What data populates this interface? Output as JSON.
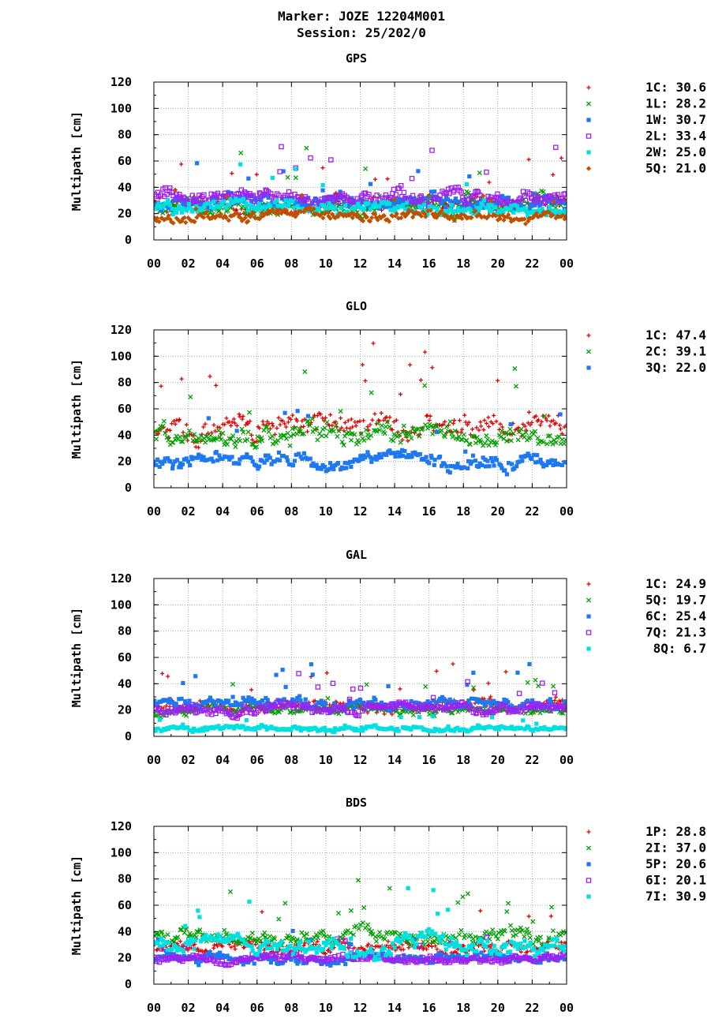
{
  "header": {
    "title_line1": "Marker: JOZE 12204M001",
    "title_line2": "Session: 25/202/0"
  },
  "colors": {
    "red": "#e00000",
    "green": "#00a000",
    "blue": "#1e78f0",
    "purple": "#a020f0",
    "cyan": "#00e0e0",
    "brown": "#c05000"
  },
  "chart_data": [
    {
      "type": "scatter",
      "title": "GPS",
      "ylabel": "Multipath [cm]",
      "ylim": [
        0,
        120
      ],
      "yticks": [
        "0",
        "20",
        "40",
        "60",
        "80",
        "100",
        "120"
      ],
      "xlim": [
        0,
        24
      ],
      "xticks": [
        "00",
        "02",
        "04",
        "06",
        "08",
        "10",
        "12",
        "14",
        "16",
        "18",
        "20",
        "22",
        "00"
      ],
      "grid": true,
      "legend_position": "right",
      "series": [
        {
          "name": "1C",
          "value": "30.6",
          "color": "#e00000",
          "marker": "plus",
          "base": 28,
          "spread": 6
        },
        {
          "name": "1L",
          "value": "28.2",
          "color": "#00a000",
          "marker": "cross",
          "base": 26,
          "spread": 7
        },
        {
          "name": "1W",
          "value": "30.7",
          "color": "#1e78f0",
          "marker": "square",
          "base": 29,
          "spread": 6
        },
        {
          "name": "2L",
          "value": "33.4",
          "color": "#a020f0",
          "marker": "osquare",
          "base": 33,
          "spread": 6
        },
        {
          "name": "2W",
          "value": "25.0",
          "color": "#00e0e0",
          "marker": "square",
          "base": 24,
          "spread": 5
        },
        {
          "name": "5Q",
          "value": "21.0",
          "color": "#c05000",
          "marker": "diamond",
          "base": 18,
          "spread": 4
        }
      ]
    },
    {
      "type": "scatter",
      "title": "GLO",
      "ylabel": "Multipath [cm]",
      "ylim": [
        0,
        120
      ],
      "yticks": [
        "0",
        "20",
        "40",
        "60",
        "80",
        "100",
        "120"
      ],
      "xlim": [
        0,
        24
      ],
      "xticks": [
        "00",
        "02",
        "04",
        "06",
        "08",
        "10",
        "12",
        "14",
        "16",
        "18",
        "20",
        "22",
        "00"
      ],
      "grid": true,
      "legend_position": "right",
      "series": [
        {
          "name": "1C",
          "value": "47.4",
          "color": "#e00000",
          "marker": "plus",
          "base": 46,
          "spread": 10
        },
        {
          "name": "2C",
          "value": "39.1",
          "color": "#00a000",
          "marker": "cross",
          "base": 40,
          "spread": 8
        },
        {
          "name": "3Q",
          "value": "22.0",
          "color": "#1e78f0",
          "marker": "square",
          "base": 20,
          "spread": 6
        }
      ]
    },
    {
      "type": "scatter",
      "title": "GAL",
      "ylabel": "Multipath [cm]",
      "ylim": [
        0,
        120
      ],
      "yticks": [
        "0",
        "20",
        "40",
        "60",
        "80",
        "100",
        "120"
      ],
      "xlim": [
        0,
        24
      ],
      "xticks": [
        "00",
        "02",
        "04",
        "06",
        "08",
        "10",
        "12",
        "14",
        "16",
        "18",
        "20",
        "22",
        "00"
      ],
      "grid": true,
      "legend_position": "right",
      "series": [
        {
          "name": "1C",
          "value": "24.9",
          "color": "#e00000",
          "marker": "plus",
          "base": 24,
          "spread": 5
        },
        {
          "name": "5Q",
          "value": "19.7",
          "color": "#00a000",
          "marker": "cross",
          "base": 19,
          "spread": 4
        },
        {
          "name": "6C",
          "value": "25.4",
          "color": "#1e78f0",
          "marker": "square",
          "base": 25,
          "spread": 5
        },
        {
          "name": "7Q",
          "value": "21.3",
          "color": "#a020f0",
          "marker": "osquare",
          "base": 21,
          "spread": 4
        },
        {
          "name": "8Q",
          "value": "6.7",
          "color": "#00e0e0",
          "marker": "square",
          "base": 6,
          "spread": 2
        }
      ]
    },
    {
      "type": "scatter",
      "title": "BDS",
      "ylabel": "Multipath [cm]",
      "ylim": [
        0,
        120
      ],
      "yticks": [
        "0",
        "20",
        "40",
        "60",
        "80",
        "100",
        "120"
      ],
      "xlim": [
        0,
        24
      ],
      "xticks": [
        "00",
        "02",
        "04",
        "06",
        "08",
        "10",
        "12",
        "14",
        "16",
        "18",
        "20",
        "22",
        "00"
      ],
      "grid": true,
      "legend_position": "right",
      "series": [
        {
          "name": "1P",
          "value": "28.8",
          "color": "#e00000",
          "marker": "plus",
          "base": 28,
          "spread": 5
        },
        {
          "name": "2I",
          "value": "37.0",
          "color": "#00a000",
          "marker": "cross",
          "base": 36,
          "spread": 6
        },
        {
          "name": "5P",
          "value": "20.6",
          "color": "#1e78f0",
          "marker": "square",
          "base": 20,
          "spread": 4
        },
        {
          "name": "6I",
          "value": "20.1",
          "color": "#a020f0",
          "marker": "osquare",
          "base": 19,
          "spread": 3
        },
        {
          "name": "7I",
          "value": "30.9",
          "color": "#00e0e0",
          "marker": "square",
          "base": 30,
          "spread": 7
        }
      ]
    }
  ]
}
